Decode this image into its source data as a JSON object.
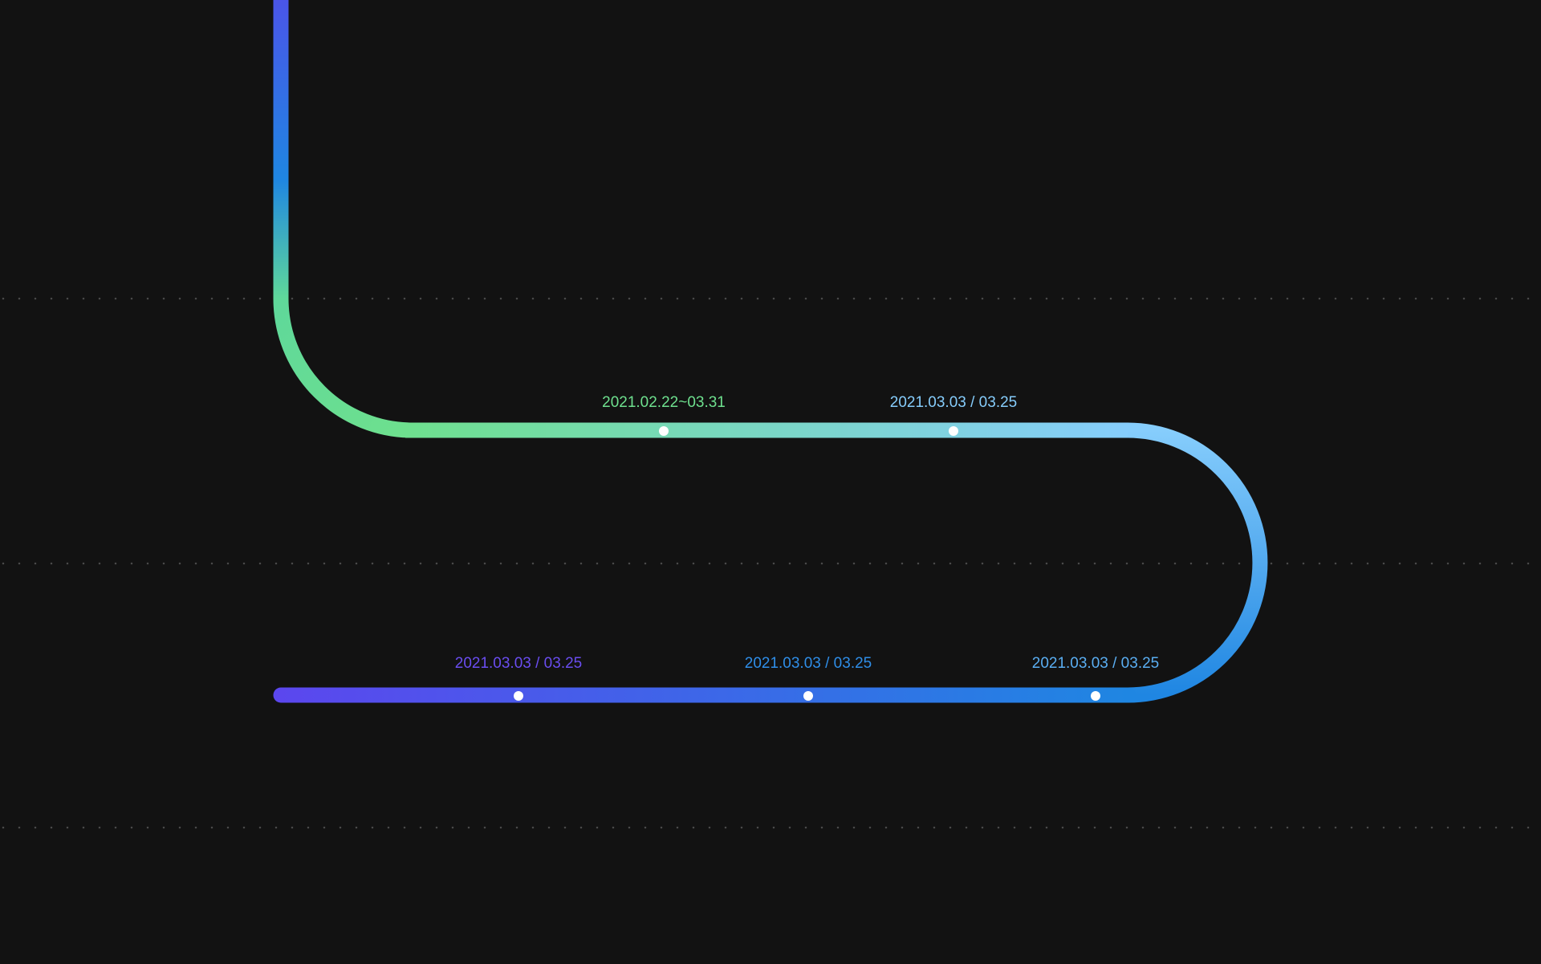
{
  "colors": {
    "background": "#121212",
    "dotted_guide": "#4a4a4a",
    "milestone_dot": "#ffffff",
    "track_top_start": "#4a55e8",
    "track_top_mid": "#1f86e2",
    "track_turn": "#5fd89a",
    "track_upper_start": "#6ee08e",
    "track_upper_end": "#86cdfc",
    "track_bend_end": "#1f86e2",
    "track_lower_start": "#5b47ee",
    "track_lower_end": "#1f86e2"
  },
  "milestones": {
    "upper": [
      {
        "label": "2021.02.22~03.31",
        "color": "#6ee08e"
      },
      {
        "label": "2021.03.03 / 03.25",
        "color": "#86cdfc"
      }
    ],
    "lower": [
      {
        "label": "2021.03.03 / 03.25",
        "color": "#6a4df0"
      },
      {
        "label": "2021.03.03 / 03.25",
        "color": "#2f8ee8"
      },
      {
        "label": "2021.03.03 / 03.25",
        "color": "#5aaef2"
      }
    ]
  }
}
